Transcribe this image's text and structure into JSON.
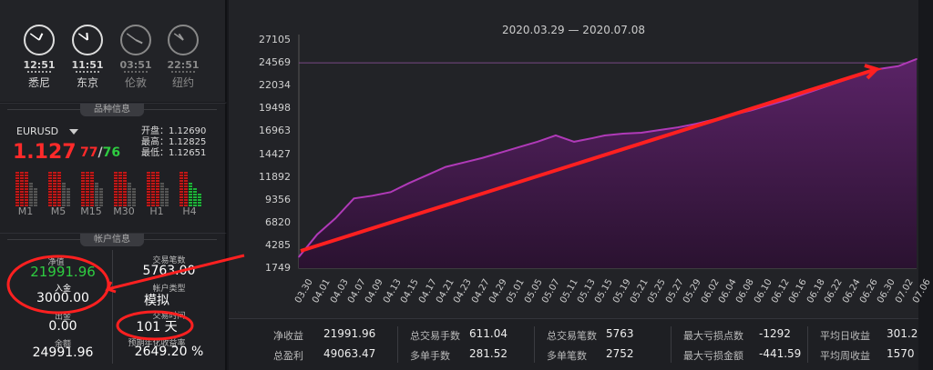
{
  "clocks": [
    {
      "time": "12:51",
      "city": "悉尼",
      "h": 12,
      "m": 51,
      "active": true
    },
    {
      "time": "11:51",
      "city": "东京",
      "h": 11,
      "m": 51,
      "active": true
    },
    {
      "time": "03:51",
      "city": "伦敦",
      "h": 3,
      "m": 51,
      "active": false
    },
    {
      "time": "22:51",
      "city": "纽约",
      "h": 22,
      "m": 51,
      "active": false
    }
  ],
  "symbol_section": {
    "title": "品种信息",
    "symbol": "EURUSD",
    "price_main": "1.127",
    "price_red": "77",
    "price_sep": "/",
    "price_green": "76",
    "open": "开盘：1.12690",
    "high": "最高：1.12825",
    "low": "最低：1.12651",
    "timeframes": [
      "M1",
      "M5",
      "M15",
      "M30",
      "H1",
      "H4"
    ]
  },
  "account_section": {
    "title": "帐户信息",
    "net_value_label": "净值",
    "net_value": "21991.96",
    "deposit_label": "入金",
    "deposit": "3000.00",
    "withdraw_label": "出金",
    "withdraw": "0.00",
    "balance_label": "余额",
    "balance": "24991.96",
    "trades_label": "交易笔数",
    "trades": "5763.00",
    "account_type_label": "帐户类型",
    "account_type": "模拟",
    "trade_time_label": "交易时间",
    "trade_time": "101 天",
    "return_label": "预期年化收益率",
    "return_rate": "2649.20 %"
  },
  "chart": {
    "title": "2020.03.29 — 2020.07.08",
    "accent": "#b03ab8",
    "fill": "#3f1a4a",
    "arrow_color": "#ff2a2a"
  },
  "chart_data": {
    "type": "area",
    "title": "2020.03.29 — 2020.07.08",
    "y_ticks": [
      "27105",
      "24569",
      "22034",
      "19498",
      "16963",
      "14427",
      "11892",
      "9356",
      "6820",
      "4285",
      "1749"
    ],
    "ylim": [
      1749,
      27105
    ],
    "x_ticks": [
      "03.30",
      "04.01",
      "04.03",
      "04.07",
      "04.09",
      "04.13",
      "04.15",
      "04.17",
      "04.21",
      "04.23",
      "04.27",
      "04.29",
      "05.01",
      "05.05",
      "05.07",
      "05.11",
      "05.13",
      "05.15",
      "05.19",
      "05.21",
      "05.25",
      "05.27",
      "05.29",
      "06.02",
      "06.04",
      "06.08",
      "06.10",
      "06.12",
      "06.16",
      "06.18",
      "06.22",
      "06.24",
      "06.26",
      "06.30",
      "07.02",
      "07.06"
    ],
    "x": [
      0,
      3,
      6,
      9,
      12,
      15,
      18,
      21,
      24,
      27,
      30,
      33,
      36,
      39,
      42,
      45,
      48,
      50,
      53,
      56,
      59,
      62,
      65,
      68,
      71,
      74,
      77,
      80,
      83,
      86,
      89,
      92,
      95,
      98,
      101
    ],
    "values": [
      3000,
      5500,
      7300,
      9500,
      9800,
      10200,
      11200,
      12100,
      13000,
      13500,
      14000,
      14600,
      15200,
      15800,
      16500,
      15800,
      16200,
      16500,
      16700,
      16800,
      17100,
      17400,
      17800,
      18300,
      18800,
      19300,
      19900,
      20500,
      21200,
      21900,
      22600,
      23300,
      23900,
      24200,
      24991
    ],
    "grid": false,
    "legend": "none"
  },
  "stats": [
    {
      "label": "净收益",
      "value": "21991.96"
    },
    {
      "label": "总盈利",
      "value": "49063.47"
    },
    {
      "label": "总交易手数",
      "value": "611.04"
    },
    {
      "label": "多单手数",
      "value": "281.52"
    },
    {
      "label": "总交易笔数",
      "value": "5763"
    },
    {
      "label": "多单笔数",
      "value": "2752"
    },
    {
      "label": "最大亏损点数",
      "value": "-1292"
    },
    {
      "label": "最大亏损金额",
      "value": "-441.59"
    },
    {
      "label": "平均日收益",
      "value": "301.2"
    },
    {
      "label": "平均周收益",
      "value": "1570"
    }
  ]
}
